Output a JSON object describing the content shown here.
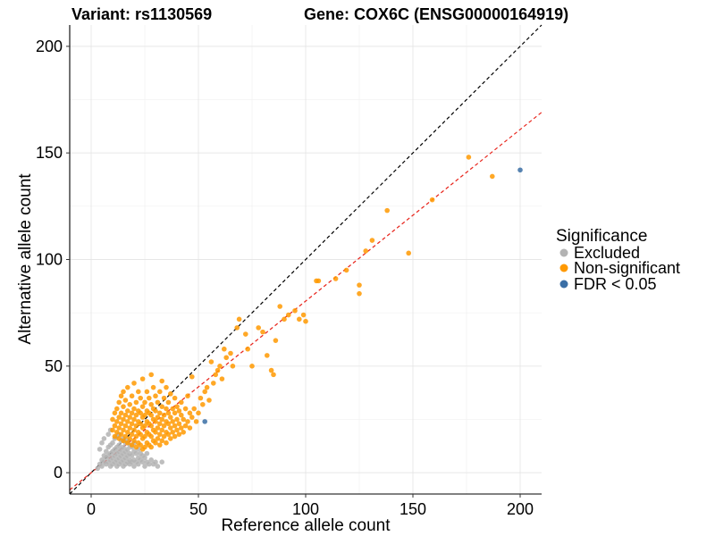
{
  "chart_data": {
    "type": "scatter",
    "title_left": "Variant: rs1130569",
    "title_right": "Gene: COX6C (ENSG00000164919)",
    "xlabel": "Reference allele count",
    "ylabel": "Alternative allele count",
    "xlim": [
      -10,
      210
    ],
    "ylim": [
      -10,
      210
    ],
    "xticks": [
      0,
      50,
      100,
      150,
      200
    ],
    "yticks": [
      0,
      50,
      100,
      150,
      200
    ],
    "grid": true,
    "legend": {
      "title": "Significance",
      "position": "right",
      "entries": [
        {
          "label": "Excluded",
          "color": "#b3b3b3"
        },
        {
          "label": "Non-significant",
          "color": "#ff9900"
        },
        {
          "label": "FDR < 0.05",
          "color": "#3a6ea5"
        }
      ]
    },
    "reference_lines": [
      {
        "name": "identity",
        "slope": 1.0,
        "intercept": 0,
        "color": "#000000",
        "style": "dashed"
      },
      {
        "name": "fit",
        "slope": 0.805,
        "intercept": 0,
        "color": "#e8251c",
        "style": "dashed"
      }
    ],
    "series": [
      {
        "name": "Excluded",
        "color": "#b3b3b3",
        "points": [
          [
            3,
            2
          ],
          [
            4,
            4
          ],
          [
            5,
            3
          ],
          [
            5,
            6
          ],
          [
            6,
            5
          ],
          [
            6,
            8
          ],
          [
            7,
            4
          ],
          [
            7,
            7
          ],
          [
            7,
            10
          ],
          [
            8,
            5
          ],
          [
            8,
            8
          ],
          [
            8,
            12
          ],
          [
            9,
            3
          ],
          [
            9,
            6
          ],
          [
            9,
            9
          ],
          [
            9,
            13
          ],
          [
            10,
            4
          ],
          [
            10,
            7
          ],
          [
            10,
            10
          ],
          [
            10,
            14
          ],
          [
            11,
            5
          ],
          [
            11,
            8
          ],
          [
            11,
            11
          ],
          [
            11,
            16
          ],
          [
            12,
            3
          ],
          [
            12,
            6
          ],
          [
            12,
            9
          ],
          [
            12,
            12
          ],
          [
            12,
            17
          ],
          [
            13,
            4
          ],
          [
            13,
            7
          ],
          [
            13,
            10
          ],
          [
            13,
            13
          ],
          [
            13,
            18
          ],
          [
            14,
            5
          ],
          [
            14,
            8
          ],
          [
            14,
            11
          ],
          [
            14,
            15
          ],
          [
            15,
            3
          ],
          [
            15,
            6
          ],
          [
            15,
            9
          ],
          [
            15,
            12
          ],
          [
            15,
            16
          ],
          [
            16,
            4
          ],
          [
            16,
            7
          ],
          [
            16,
            10
          ],
          [
            16,
            14
          ],
          [
            17,
            5
          ],
          [
            17,
            8
          ],
          [
            17,
            11
          ],
          [
            17,
            15
          ],
          [
            18,
            4
          ],
          [
            18,
            6
          ],
          [
            18,
            9
          ],
          [
            18,
            13
          ],
          [
            19,
            5
          ],
          [
            19,
            8
          ],
          [
            19,
            12
          ],
          [
            20,
            3
          ],
          [
            20,
            6
          ],
          [
            20,
            10
          ],
          [
            20,
            14
          ],
          [
            21,
            5
          ],
          [
            21,
            9
          ],
          [
            22,
            4
          ],
          [
            22,
            7
          ],
          [
            22,
            11
          ],
          [
            23,
            6
          ],
          [
            23,
            9
          ],
          [
            24,
            5
          ],
          [
            24,
            8
          ],
          [
            25,
            3
          ],
          [
            25,
            7
          ],
          [
            26,
            5
          ],
          [
            26,
            9
          ],
          [
            27,
            4
          ],
          [
            28,
            6
          ],
          [
            29,
            4
          ],
          [
            30,
            5
          ],
          [
            31,
            3
          ],
          [
            33,
            5
          ],
          [
            4,
            11
          ],
          [
            5,
            14
          ],
          [
            6,
            16
          ],
          [
            8,
            18
          ],
          [
            9,
            20
          ]
        ]
      },
      {
        "name": "Non-significant",
        "color": "#ff9900",
        "points": [
          [
            10,
            20
          ],
          [
            10,
            25
          ],
          [
            11,
            17
          ],
          [
            11,
            22
          ],
          [
            11,
            28
          ],
          [
            12,
            19
          ],
          [
            12,
            24
          ],
          [
            12,
            30
          ],
          [
            13,
            16
          ],
          [
            13,
            21
          ],
          [
            13,
            26
          ],
          [
            13,
            33
          ],
          [
            14,
            18
          ],
          [
            14,
            23
          ],
          [
            14,
            28
          ],
          [
            14,
            36
          ],
          [
            15,
            15
          ],
          [
            15,
            20
          ],
          [
            15,
            25
          ],
          [
            15,
            31
          ],
          [
            15,
            38
          ],
          [
            16,
            17
          ],
          [
            16,
            22
          ],
          [
            16,
            27
          ],
          [
            16,
            34
          ],
          [
            17,
            14
          ],
          [
            17,
            19
          ],
          [
            17,
            24
          ],
          [
            17,
            29
          ],
          [
            17,
            40
          ],
          [
            18,
            16
          ],
          [
            18,
            21
          ],
          [
            18,
            26
          ],
          [
            18,
            32
          ],
          [
            19,
            13
          ],
          [
            19,
            18
          ],
          [
            19,
            23
          ],
          [
            19,
            28
          ],
          [
            19,
            36
          ],
          [
            20,
            15
          ],
          [
            20,
            20
          ],
          [
            20,
            25
          ],
          [
            20,
            30
          ],
          [
            20,
            42
          ],
          [
            21,
            12
          ],
          [
            21,
            17
          ],
          [
            21,
            22
          ],
          [
            21,
            27
          ],
          [
            21,
            33
          ],
          [
            22,
            14
          ],
          [
            22,
            19
          ],
          [
            22,
            24
          ],
          [
            22,
            29
          ],
          [
            22,
            38
          ],
          [
            23,
            13
          ],
          [
            23,
            18
          ],
          [
            23,
            23
          ],
          [
            23,
            28
          ],
          [
            23,
            35
          ],
          [
            24,
            11
          ],
          [
            24,
            16
          ],
          [
            24,
            21
          ],
          [
            24,
            26
          ],
          [
            24,
            31
          ],
          [
            24,
            44
          ],
          [
            25,
            12
          ],
          [
            25,
            17
          ],
          [
            25,
            22
          ],
          [
            25,
            27
          ],
          [
            25,
            33
          ],
          [
            26,
            14
          ],
          [
            26,
            19
          ],
          [
            26,
            24
          ],
          [
            26,
            29
          ],
          [
            26,
            38
          ],
          [
            27,
            13
          ],
          [
            27,
            18
          ],
          [
            27,
            23
          ],
          [
            27,
            28
          ],
          [
            27,
            35
          ],
          [
            28,
            12
          ],
          [
            28,
            17
          ],
          [
            28,
            22
          ],
          [
            28,
            27
          ],
          [
            28,
            32
          ],
          [
            28,
            46
          ],
          [
            29,
            15
          ],
          [
            29,
            20
          ],
          [
            29,
            25
          ],
          [
            29,
            30
          ],
          [
            29,
            40
          ],
          [
            30,
            14
          ],
          [
            30,
            19
          ],
          [
            30,
            24
          ],
          [
            30,
            29
          ],
          [
            30,
            36
          ],
          [
            31,
            16
          ],
          [
            31,
            21
          ],
          [
            31,
            26
          ],
          [
            31,
            33
          ],
          [
            32,
            13
          ],
          [
            32,
            18
          ],
          [
            32,
            23
          ],
          [
            32,
            28
          ],
          [
            32,
            38
          ],
          [
            33,
            15
          ],
          [
            33,
            20
          ],
          [
            33,
            25
          ],
          [
            33,
            31
          ],
          [
            33,
            43
          ],
          [
            34,
            17
          ],
          [
            34,
            22
          ],
          [
            34,
            27
          ],
          [
            34,
            35
          ],
          [
            35,
            14
          ],
          [
            35,
            19
          ],
          [
            35,
            24
          ],
          [
            35,
            30
          ],
          [
            35,
            40
          ],
          [
            36,
            18
          ],
          [
            36,
            23
          ],
          [
            36,
            28
          ],
          [
            36,
            33
          ],
          [
            37,
            16
          ],
          [
            37,
            21
          ],
          [
            37,
            26
          ],
          [
            37,
            37
          ],
          [
            38,
            19
          ],
          [
            38,
            24
          ],
          [
            38,
            30
          ],
          [
            39,
            17
          ],
          [
            39,
            22
          ],
          [
            39,
            28
          ],
          [
            39,
            35
          ],
          [
            40,
            20
          ],
          [
            40,
            25
          ],
          [
            40,
            31
          ],
          [
            41,
            18
          ],
          [
            41,
            23
          ],
          [
            41,
            29
          ],
          [
            42,
            21
          ],
          [
            42,
            27
          ],
          [
            42,
            33
          ],
          [
            43,
            19
          ],
          [
            43,
            25
          ],
          [
            44,
            22
          ],
          [
            44,
            30
          ],
          [
            45,
            24
          ],
          [
            45,
            36
          ],
          [
            46,
            21
          ],
          [
            46,
            28
          ],
          [
            47,
            26
          ],
          [
            47,
            45
          ],
          [
            48,
            30
          ],
          [
            49,
            24
          ],
          [
            50,
            28
          ],
          [
            51,
            35
          ],
          [
            52,
            32
          ],
          [
            53,
            38
          ],
          [
            54,
            40
          ],
          [
            55,
            34
          ],
          [
            56,
            52
          ],
          [
            57,
            42
          ],
          [
            58,
            46
          ],
          [
            59,
            48
          ],
          [
            60,
            50
          ],
          [
            61,
            44
          ],
          [
            62,
            58
          ],
          [
            63,
            54
          ],
          [
            65,
            56
          ],
          [
            66,
            50
          ],
          [
            68,
            68
          ],
          [
            69,
            72
          ],
          [
            72,
            65
          ],
          [
            73,
            58
          ],
          [
            75,
            50
          ],
          [
            78,
            68
          ],
          [
            80,
            66
          ],
          [
            82,
            55
          ],
          [
            84,
            48
          ],
          [
            85,
            46
          ],
          [
            86,
            62
          ],
          [
            88,
            78
          ],
          [
            90,
            72
          ],
          [
            92,
            74
          ],
          [
            95,
            76
          ],
          [
            97,
            72
          ],
          [
            99,
            74
          ],
          [
            100,
            71
          ],
          [
            105,
            90
          ],
          [
            106,
            90
          ],
          [
            114,
            91
          ],
          [
            119,
            95
          ],
          [
            125,
            84
          ],
          [
            125,
            88
          ],
          [
            128,
            104
          ],
          [
            131,
            109
          ],
          [
            138,
            123
          ],
          [
            148,
            103
          ],
          [
            159,
            128
          ],
          [
            176,
            148
          ],
          [
            187,
            139
          ]
        ]
      },
      {
        "name": "FDR < 0.05",
        "color": "#3a6ea5",
        "points": [
          [
            53,
            24
          ],
          [
            200,
            142
          ]
        ]
      }
    ]
  }
}
